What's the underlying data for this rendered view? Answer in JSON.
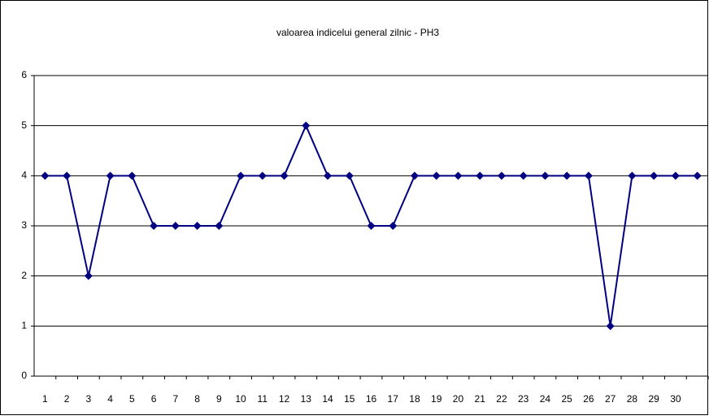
{
  "chart_data": {
    "type": "line",
    "title": "valoarea indicelui general zilnic - PH3",
    "categories": [
      "1",
      "2",
      "3",
      "4",
      "5",
      "6",
      "7",
      "8",
      "9",
      "10",
      "11",
      "12",
      "13",
      "14",
      "15",
      "16",
      "17",
      "18",
      "19",
      "20",
      "21",
      "22",
      "23",
      "24",
      "25",
      "26",
      "27",
      "28",
      "29",
      "30",
      null
    ],
    "values": [
      4,
      4,
      2,
      4,
      4,
      3,
      3,
      3,
      3,
      4,
      4,
      4,
      5,
      4,
      4,
      3,
      3,
      4,
      4,
      4,
      4,
      4,
      4,
      4,
      4,
      4,
      1,
      4,
      4,
      4,
      4
    ],
    "color": "#000080",
    "ylim": [
      0,
      6
    ],
    "yticks": [
      0,
      1,
      2,
      3,
      4,
      5,
      6
    ],
    "grid": true
  }
}
